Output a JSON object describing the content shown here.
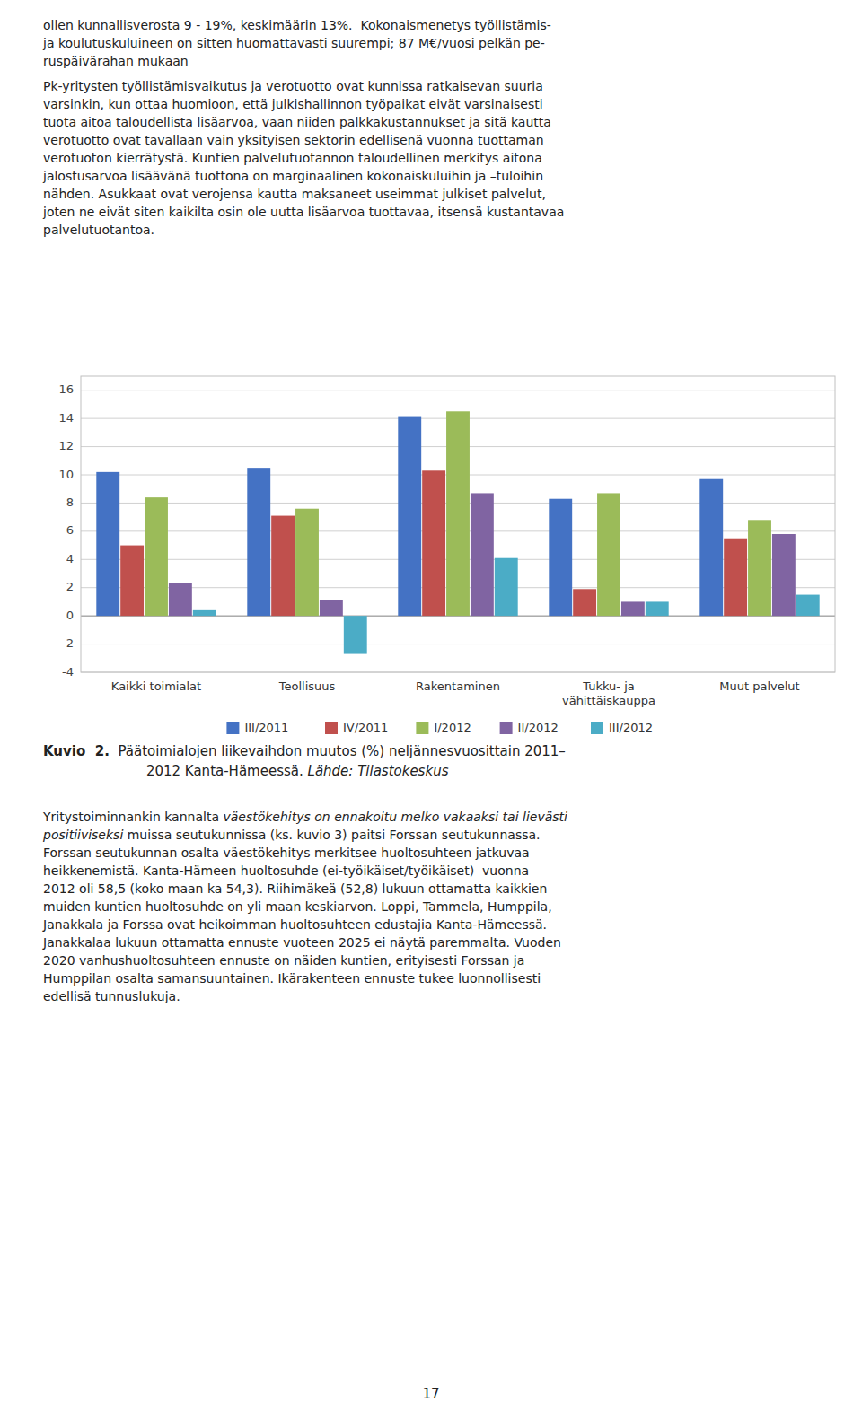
{
  "chart_data": {
    "type": "bar",
    "categories": [
      "Kaikki toimialat",
      "Teollisuus",
      "Rakentaminen",
      "Tukku- ja\nvähittäiskauppa",
      "Muut palvelut"
    ],
    "series": [
      {
        "name": "III/2011",
        "color": "#4472C4",
        "values": [
          10.2,
          10.5,
          14.1,
          8.3,
          9.7
        ]
      },
      {
        "name": "IV/2011",
        "color": "#C0504D",
        "values": [
          5.0,
          7.1,
          10.3,
          1.9,
          5.5
        ]
      },
      {
        "name": "I/2012",
        "color": "#9BBB59",
        "values": [
          8.4,
          7.6,
          14.5,
          8.7,
          6.8
        ]
      },
      {
        "name": "II/2012",
        "color": "#8064A2",
        "values": [
          2.3,
          1.1,
          8.7,
          1.0,
          5.8
        ]
      },
      {
        "name": "III/2012",
        "color": "#4BACC6",
        "values": [
          0.4,
          -2.7,
          4.1,
          1.0,
          1.5
        ]
      }
    ],
    "ylim": [
      -4,
      17
    ],
    "yticks": [
      -4,
      -2,
      0,
      2,
      4,
      6,
      8,
      10,
      12,
      14,
      16
    ],
    "grid": true,
    "legend": "bottom"
  },
  "page": {
    "text_before": [
      [
        "ollen kunnallisverosta 9 - 19%, keskimäärin 13%.  Kokonaismenetys työllistämis-",
        "ja koulutuskuluineen on sitten huomattavasti suurempi; 87 M€/vuosi pelkän pe-",
        "ruspäivärahan mukaan"
      ],
      [
        "Pk-yritysten työllistämisvaikutus ja verotuotto ovat kunnissa ratkaisevan suuria",
        "varsinkin, kun ottaa huomioon, että julkishallinnon työpaikat eivät varsinaisesti",
        "tuota aitoa taloudellista lisäarvoa, vaan niiden palkkakustannukset ja sitä kautta",
        "verotuotto ovat tavallaan vain yksityisen sektorin edellisenä vuonna tuottaman",
        "verotuoton kierrätystä. Kuntien palvelutuotannon taloudellinen merkitys aitona",
        "jalostusarvoa lisäävänä tuottona on marginaalinen kokonaiskuluihin ja –tuloihin",
        "nähden. Asukkaat ovat verojensa kautta maksaneet useimmat julkiset palvelut,",
        "joten ne eivät siten kaikilta osin ole uutta lisäarvoa tuottavaa, itsensä kustantavaa",
        "palvelutuotantoa."
      ]
    ],
    "caption": [
      [
        {
          "text": "Kuvio  2.",
          "style": "bold"
        },
        {
          "text": "  Päätoimialojen liikevaihdon muutos (%) neljännesvuosittain 2011–",
          "style": "normal"
        }
      ],
      [
        {
          "text": "         2012 Kanta-Hämeessä.",
          "style": "normal"
        },
        {
          "text": " Lähde: Tilastokeskus",
          "style": "italic"
        }
      ]
    ],
    "text_after": [
      [
        {
          "text": "Yritystoiminnankin kannalta ",
          "style": "normal"
        },
        {
          "text": "väestökehitys on ennakoitu melko vakaaksi tai lievästi",
          "style": "italic"
        }
      ],
      [
        {
          "text": "positiiviseksi",
          "style": "italic"
        },
        {
          "text": " muissa seutukunnissa (ks. kuvio 3) paitsi Forssan seutukunnassa.",
          "style": "normal"
        }
      ],
      [
        {
          "text": "Forssan seutukunnan osalta väestökehitys merkitsee huoltosuhteen jatkuvaa",
          "style": "normal"
        }
      ],
      [
        {
          "text": "heikkenemistä. Kanta-Hämeen huoltosuhde (ei-työikäiset/työikäiset)  vuonna",
          "style": "normal"
        }
      ],
      [
        {
          "text": "2012 oli 58,5 (koko maan ka 54,3). Riihimäkeä (52,8) lukuun ottamatta kaikkien",
          "style": "normal"
        }
      ],
      [
        {
          "text": "muiden kuntien huoltosuhde on yli maan keskiarvon. Loppi, Tammela, Humppila,",
          "style": "normal"
        }
      ],
      [
        {
          "text": "Janakkala ja Forssa ovat heikoimman huoltosuhteen edustajia Kanta-Hämeessä.",
          "style": "normal"
        }
      ],
      [
        {
          "text": "Janakkalaa lukuun ottamatta ennuste vuoteen 2025 ei näytä paremmalta. Vuoden",
          "style": "normal"
        }
      ],
      [
        {
          "text": "2020 vanhushuoltosuhteen ennuste on näiden kuntien, erityisesti Forssan ja",
          "style": "normal"
        }
      ],
      [
        {
          "text": "Humppilan osalta samansuuntainen. Ikärakenteen ennuste tukee luonnollisesti",
          "style": "normal"
        }
      ],
      [
        {
          "text": "edellisä tunnuslukuja.",
          "style": "normal"
        }
      ]
    ],
    "page_number": "17"
  }
}
